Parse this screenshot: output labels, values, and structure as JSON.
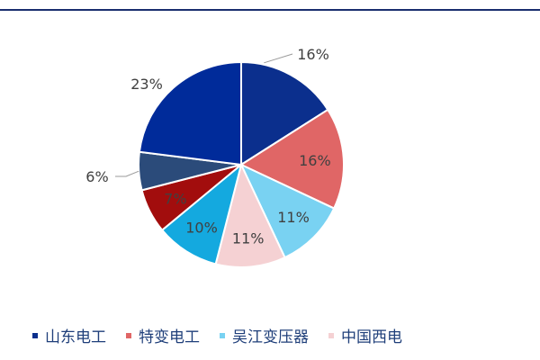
{
  "chart_data": {
    "type": "pie",
    "start_angle_deg": 0,
    "slices": [
      {
        "label": "山东电工",
        "value": 16,
        "value_label": "16%",
        "color": "#0b2f8d"
      },
      {
        "label": "特变电工",
        "value": 16,
        "value_label": "16%",
        "color": "#e06666"
      },
      {
        "label": "吴江变压器",
        "value": 11,
        "value_label": "11%",
        "color": "#79d2f2"
      },
      {
        "label": "中国西电",
        "value": 11,
        "value_label": "11%",
        "color": "#f5d1d3"
      },
      {
        "label": "",
        "value": 10,
        "value_label": "10%",
        "color": "#14a9df"
      },
      {
        "label": "",
        "value": 7,
        "value_label": "7%",
        "color": "#a20d0d"
      },
      {
        "label": "",
        "value": 6,
        "value_label": "6%",
        "color": "#2b4b7a"
      },
      {
        "label": "",
        "value": 23,
        "value_label": "23%",
        "color": "#002b9a"
      }
    ],
    "legend": {
      "position": "bottom",
      "visible_items": 4
    }
  }
}
